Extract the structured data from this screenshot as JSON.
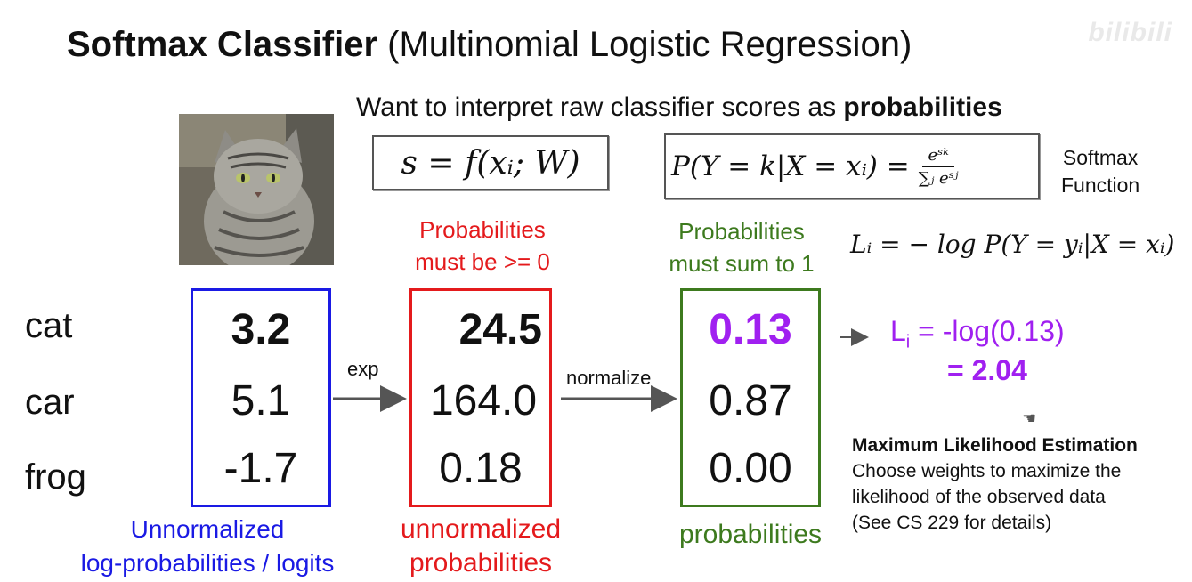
{
  "title": {
    "bold": "Softmax Classifier",
    "rest": "(Multinomial Logistic Regression)"
  },
  "watermark": "bilibili",
  "subtitle": {
    "normal": "Want to interpret raw classifier scores as",
    "bold": "probabilities"
  },
  "formulas": {
    "score": "s = f(xᵢ; W)",
    "softmax_lhs": "P(Y = k|X = xᵢ) =",
    "softmax_num": "eˢᵏ",
    "softmax_den": "∑ⱼ eˢʲ",
    "loss": "Lᵢ = − log P(Y = yᵢ|X = xᵢ)"
  },
  "softmax_label": [
    "Softmax",
    "Function"
  ],
  "notes": {
    "nonneg": [
      "Probabilities",
      "must be >= 0"
    ],
    "sum1": [
      "Probabilities",
      "must sum to 1"
    ]
  },
  "classes": [
    "cat",
    "car",
    "frog"
  ],
  "columns": {
    "logits": [
      "3.2",
      "5.1",
      "-1.7"
    ],
    "exp": [
      "24.5",
      "164.0",
      "0.18"
    ],
    "probs": [
      "0.13",
      "0.87",
      "0.00"
    ]
  },
  "arrows": {
    "exp": "exp",
    "normalize": "normalize"
  },
  "loss": {
    "line1_prefix": "L",
    "line1_sub": "i",
    "line1_rest": " = -log(0.13)",
    "line2": "= 2.04"
  },
  "mle": {
    "heading": "Maximum Likelihood Estimation",
    "lines": [
      "Choose weights to maximize the",
      "likelihood of the observed data",
      "(See CS 229 for details)"
    ]
  },
  "captions": {
    "logits": [
      "Unnormalized",
      "log-probabilities / logits"
    ],
    "exp": [
      "unnormalized",
      "probabilities"
    ],
    "probs": [
      "probabilities"
    ]
  },
  "colors": {
    "blue": "#1a1ae4",
    "red": "#e41a1c",
    "green": "#3d7a1e",
    "purple": "#a020f0"
  }
}
